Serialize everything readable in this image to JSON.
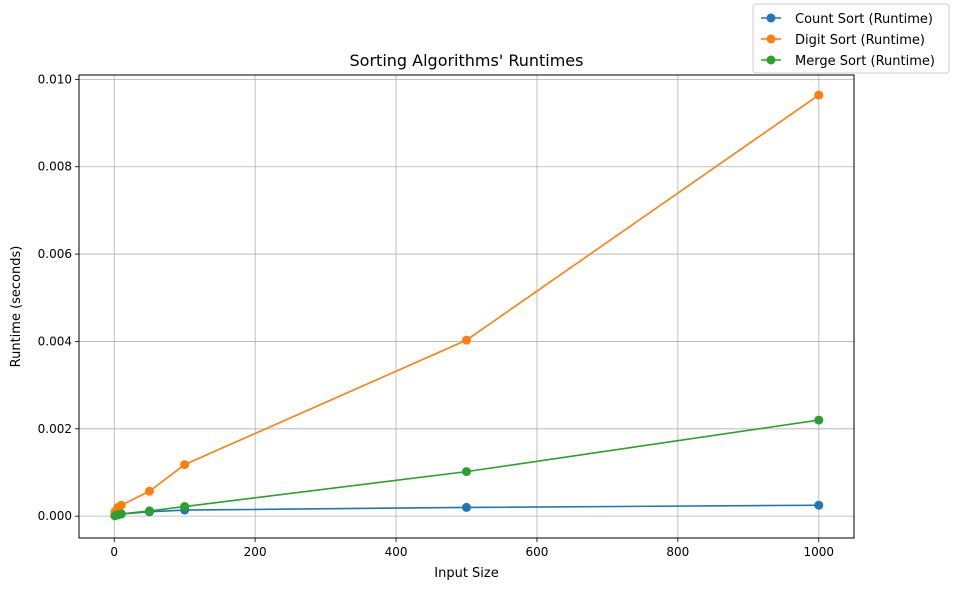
{
  "chart_data": {
    "type": "line",
    "title": "Sorting Algorithms' Runtimes",
    "xlabel": "Input Size",
    "ylabel": "Runtime (seconds)",
    "xlim": [
      -50,
      1050
    ],
    "ylim": [
      -0.0005,
      0.0101
    ],
    "xticks": [
      0,
      200,
      400,
      600,
      800,
      1000
    ],
    "yticks": [
      0.0,
      0.002,
      0.004,
      0.006,
      0.008,
      0.01
    ],
    "ytick_labels": [
      "0.000",
      "0.002",
      "0.004",
      "0.006",
      "0.008",
      "0.010"
    ],
    "grid": true,
    "legend_position": "top-right (outside plot)",
    "x": [
      1,
      5,
      10,
      50,
      100,
      500,
      1000
    ],
    "series": [
      {
        "name": "Count Sort (Runtime)",
        "color": "#1f77b4",
        "values": [
          1e-05,
          3e-05,
          5e-05,
          0.0001,
          0.00014,
          0.0002,
          0.00025
        ]
      },
      {
        "name": "Digit Sort (Runtime)",
        "color": "#ff7f0e",
        "values": [
          0.0001,
          0.0002,
          0.00025,
          0.00057,
          0.00118,
          0.00403,
          0.00964
        ]
      },
      {
        "name": "Merge Sort (Runtime)",
        "color": "#2ca02c",
        "values": [
          1e-05,
          3e-05,
          5e-05,
          0.00012,
          0.00022,
          0.00102,
          0.0022
        ]
      }
    ]
  }
}
